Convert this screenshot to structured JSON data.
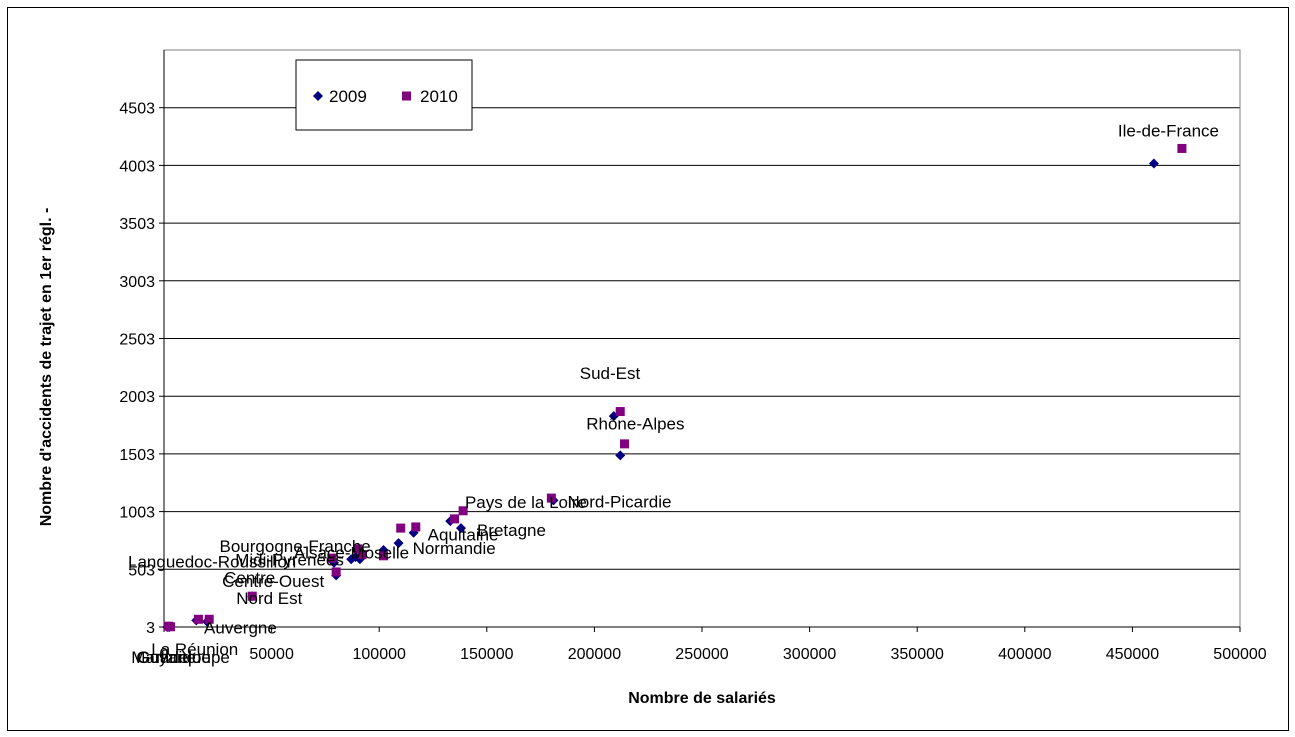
{
  "chart_data": {
    "type": "scatter",
    "title": "",
    "xlabel": "Nombre de salariés",
    "ylabel": "Nombre d'accidents de trajet en 1er régl. -",
    "xlim": [
      0,
      500000
    ],
    "ylim": [
      3,
      5003
    ],
    "x_ticks": [
      "0",
      "50000",
      "100000",
      "150000",
      "200000",
      "250000",
      "300000",
      "350000",
      "400000",
      "450000",
      "500000"
    ],
    "y_ticks": [
      "3",
      "503",
      "1003",
      "1503",
      "2003",
      "2503",
      "3003",
      "3503",
      "4003",
      "4503"
    ],
    "grid": "horizontal",
    "legend": {
      "placement": "top-left",
      "entries": [
        "2009",
        "2010"
      ]
    },
    "colors": {
      "2009": "#000080",
      "2010": "#800080"
    },
    "series": [
      {
        "name": "2009",
        "marker": "diamond",
        "points": [
          [
            460000,
            4020
          ],
          [
            209000,
            1830
          ],
          [
            212000,
            1490
          ],
          [
            181000,
            1100
          ],
          [
            133000,
            920
          ],
          [
            138000,
            860
          ],
          [
            116000,
            820
          ],
          [
            109000,
            730
          ],
          [
            102000,
            670
          ],
          [
            89000,
            610
          ],
          [
            91000,
            590
          ],
          [
            87000,
            590
          ],
          [
            79000,
            560
          ],
          [
            80000,
            450
          ],
          [
            41000,
            270
          ],
          [
            15000,
            60
          ],
          [
            20000,
            50
          ],
          [
            2000,
            5
          ],
          [
            1500,
            3
          ],
          [
            2500,
            3
          ]
        ]
      },
      {
        "name": "2010",
        "marker": "square",
        "points": [
          [
            473000,
            4150
          ],
          [
            212000,
            1870
          ],
          [
            214000,
            1590
          ],
          [
            180000,
            1120
          ],
          [
            139000,
            1010
          ],
          [
            135000,
            940
          ],
          [
            117000,
            870
          ],
          [
            110000,
            860
          ],
          [
            102000,
            620
          ],
          [
            92000,
            630
          ],
          [
            90000,
            680
          ],
          [
            80000,
            480
          ],
          [
            78000,
            600
          ],
          [
            41000,
            270
          ],
          [
            16000,
            70
          ],
          [
            21000,
            70
          ],
          [
            2000,
            10
          ],
          [
            3000,
            5
          ]
        ]
      }
    ],
    "point_labels": [
      {
        "text": "Ile-de-France",
        "x": 460000,
        "y": 4020
      },
      {
        "text": "Sud-Est",
        "x": 209000,
        "y": 1830
      },
      {
        "text": "Rhône-Alpes",
        "x": 212000,
        "y": 1490
      },
      {
        "text": "Nord-Picardie",
        "x": 181000,
        "y": 1100
      },
      {
        "text": "Pays de la Loire",
        "x": 138000,
        "y": 1010
      },
      {
        "text": "Bretagne",
        "x": 138000,
        "y": 860
      },
      {
        "text": "Aquitaine",
        "x": 116000,
        "y": 820
      },
      {
        "text": "Normandie",
        "x": 109000,
        "y": 730
      },
      {
        "text": "Bourgogne-Franche",
        "x": 89000,
        "y": 610
      },
      {
        "text": "Alsace-Moselle",
        "x": 91000,
        "y": 590
      },
      {
        "text": "Languedoc-Roussillon",
        "x": 79000,
        "y": 560
      },
      {
        "text": "Midi-Pyrénées",
        "x": 87000,
        "y": 590
      },
      {
        "text": "Centre-Ouest",
        "x": 80000,
        "y": 480
      },
      {
        "text": "Centre",
        "x": 80000,
        "y": 450
      },
      {
        "text": "Nord Est",
        "x": 41000,
        "y": 270
      },
      {
        "text": "Auvergne",
        "x": 20000,
        "y": 50
      },
      {
        "text": "La Réunion",
        "x": 15000,
        "y": 5
      },
      {
        "text": "Martinique",
        "x": 2000,
        "y": 3
      },
      {
        "text": "Guadeloupe",
        "x": 1500,
        "y": 3
      },
      {
        "text": "Guyane",
        "x": 2500,
        "y": 3
      }
    ]
  }
}
